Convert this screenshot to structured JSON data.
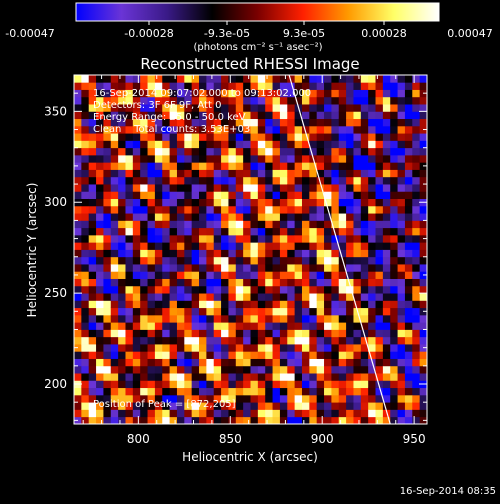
{
  "colorbar": {
    "tick_labels": [
      "-0.00047",
      "-0.00028",
      "-9.3e-05",
      "9.3e-05",
      "0.00028",
      "0.00047"
    ],
    "unit_text": "(photons cm⁻² s⁻¹ asec⁻²)",
    "colors": [
      "#0000ff",
      "#6a34d6",
      "#3a1a88",
      "#000000",
      "#7a0000",
      "#ff2000",
      "#ff9a00",
      "#ffff66",
      "#ffffff"
    ]
  },
  "chart_data": {
    "type": "heatmap",
    "title": "Reconstructed RHESSI Image",
    "xlabel": "Heliocentric X (arcsec)",
    "ylabel": "Heliocentric Y (arcsec)",
    "xlim": [
      765,
      957
    ],
    "ylim": [
      178,
      370
    ],
    "x_ticks": [
      "800",
      "850",
      "900",
      "950"
    ],
    "y_ticks": [
      "200",
      "250",
      "300",
      "350"
    ],
    "x_tick_values": [
      800,
      850,
      900,
      950
    ],
    "y_tick_values": [
      200,
      250,
      300,
      350
    ],
    "annotations": [
      "16-Sep-2014 09:07:02.000 to 09:13:02.000",
      "Detectors: 3F 6F 9F, Att 0",
      "Energy Range: 25.0 - 50.0 keV",
      "Clean    Total counts: 3.53E+03"
    ],
    "peak_label": "Position of Peak = [872,205]",
    "limb_line": [
      [
        882,
        370
      ],
      [
        937,
        178
      ]
    ],
    "grid": false,
    "legend": "colorbar-top"
  },
  "footer": {
    "timestamp": "16-Sep-2014 08:35"
  }
}
